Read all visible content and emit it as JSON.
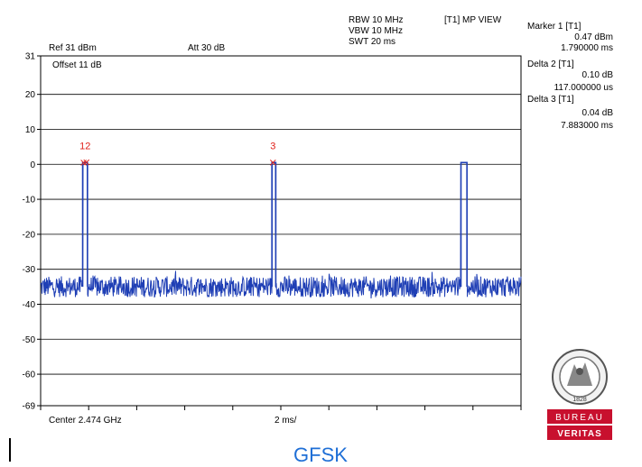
{
  "header": {
    "rbw": "RBW 10 MHz",
    "vbw": "VBW 10 MHz",
    "swt": "SWT 20 ms",
    "mode": "[T1] MP VIEW",
    "ref": "Ref 31 dBm",
    "att": "Att  30 dB",
    "offset": "Offset 11 dB"
  },
  "markers": [
    {
      "title": "Marker 1 [T1]",
      "level": "0.47 dBm",
      "time": "1.790000 ms"
    },
    {
      "title": "Delta 2 [T1]",
      "level": "0.10 dB",
      "time": "117.000000 us"
    },
    {
      "title": "Delta 3 [T1]",
      "level": "0.04 dB",
      "time": "7.883000 ms"
    }
  ],
  "footer": {
    "center": "Center 2.474 GHz",
    "span": "2 ms/"
  },
  "caption": "GFSK",
  "logo": {
    "name": "bureau-veritas-logo",
    "text_top": "BUREAU",
    "text_bottom": "VERITAS",
    "year": "1828"
  },
  "colors": {
    "trace": "#1f3fb5",
    "marker": "#e0201a",
    "grid": "#000000",
    "caption": "#1f6fd6",
    "logo_red": "#c8102e"
  },
  "chart_data": {
    "type": "line",
    "xlabel": "",
    "ylabel": "",
    "xlim": [
      0,
      20
    ],
    "ylim": [
      -69,
      31
    ],
    "y_ticks": [
      31,
      20,
      10,
      0,
      -10,
      -20,
      -30,
      -40,
      -50,
      -60,
      -69
    ],
    "x_ticks_ms": [
      0,
      2,
      4,
      6,
      8,
      10,
      12,
      14,
      16,
      18,
      20
    ],
    "noise_floor_dbm": -35,
    "noise_spread_db": 3,
    "pulses": [
      {
        "start_ms": 1.75,
        "end_ms": 1.95,
        "level_dbm": 0.47
      },
      {
        "start_ms": 9.63,
        "end_ms": 9.79,
        "level_dbm": 0.5
      },
      {
        "start_ms": 17.5,
        "end_ms": 17.75,
        "level_dbm": 0.5
      }
    ],
    "marker_points": [
      {
        "label": "1",
        "x_ms": 1.79,
        "y_dbm": 0.47
      },
      {
        "label": "2",
        "x_ms": 1.907,
        "y_dbm": 0.57
      },
      {
        "label": "3",
        "x_ms": 9.673,
        "y_dbm": 0.51
      }
    ],
    "marker_label_groups": [
      {
        "label": "12",
        "x_ms": 1.85
      },
      {
        "label": "3",
        "x_ms": 9.673
      }
    ]
  }
}
